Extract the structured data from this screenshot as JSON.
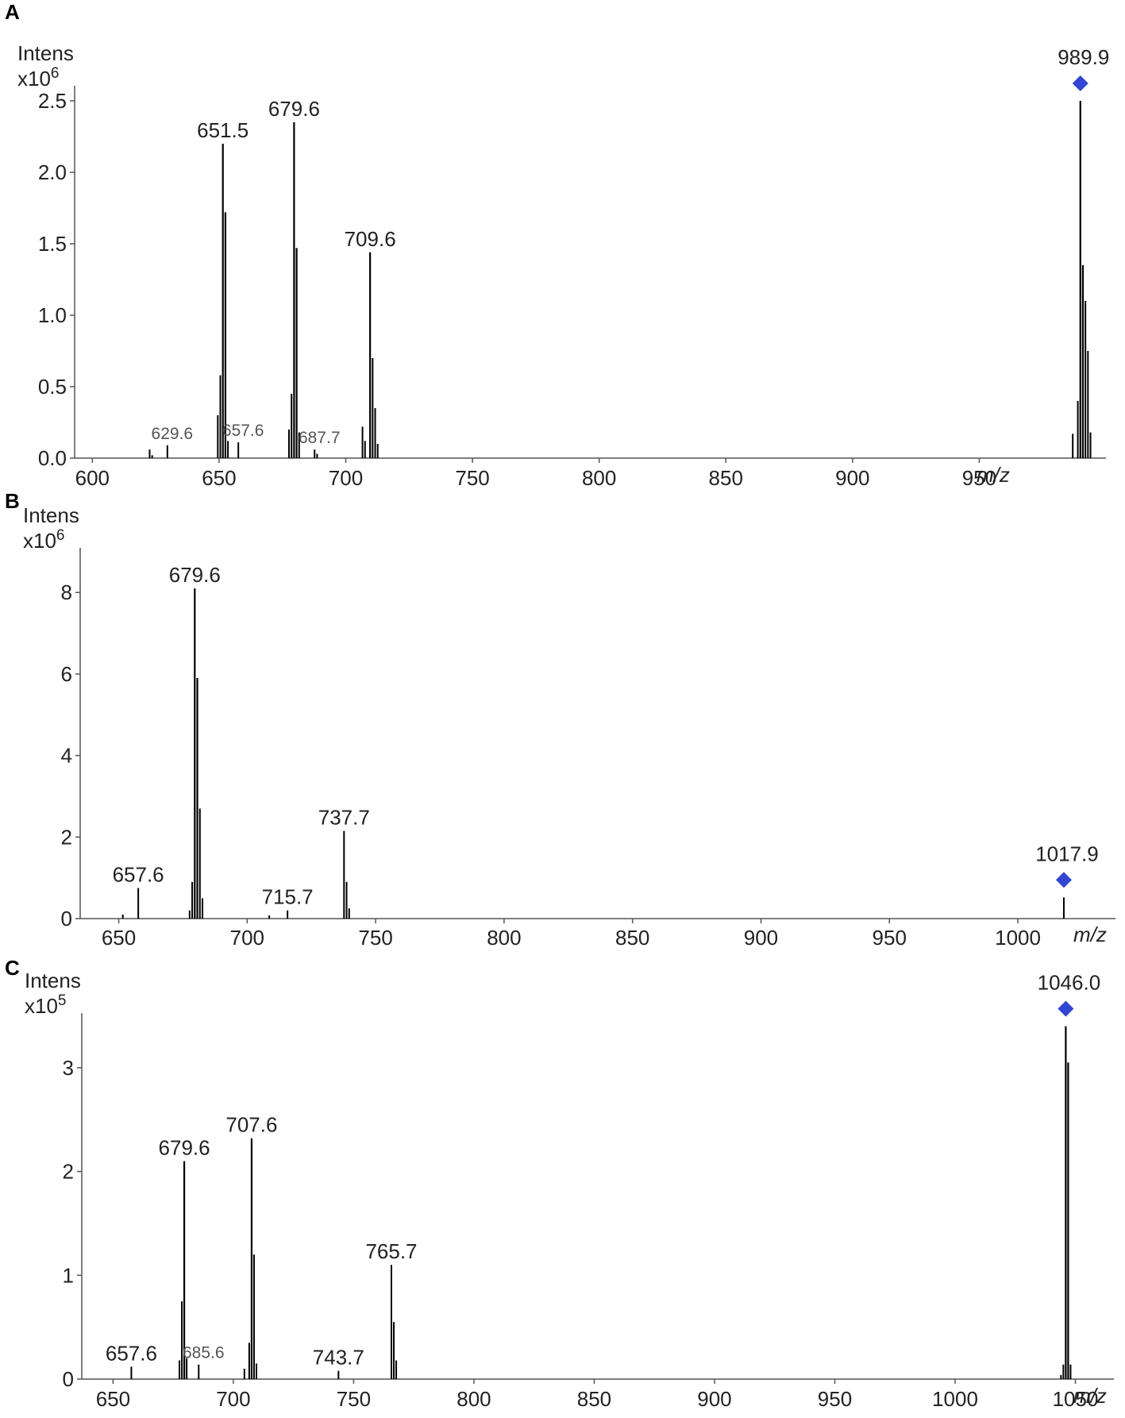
{
  "colors": {
    "spectrum": "#000000",
    "precursor_marker": "#2f46d6",
    "axis": "#555555"
  },
  "chart_data": [
    {
      "type": "bar",
      "panel": "A",
      "ylabel": "Intens",
      "yexp_base": "x10",
      "yexp": "6",
      "xunit": "m/z",
      "xlim": [
        593,
        1000
      ],
      "ylim": [
        0,
        2.55
      ],
      "xticks": [
        600,
        650,
        700,
        750,
        800,
        850,
        900,
        950
      ],
      "yticks": [
        "0.0",
        "0.5",
        "1.0",
        "1.5",
        "2.0",
        "2.5"
      ],
      "peaks": [
        {
          "mz": 622.6,
          "value": 0.06
        },
        {
          "mz": 623.6,
          "value": 0.02
        },
        {
          "mz": 629.6,
          "value": 0.09,
          "label": "629.6",
          "small": true
        },
        {
          "mz": 649.5,
          "value": 0.3
        },
        {
          "mz": 650.5,
          "value": 0.58
        },
        {
          "mz": 651.5,
          "value": 2.2,
          "label": "651.5"
        },
        {
          "mz": 652.5,
          "value": 1.72
        },
        {
          "mz": 653.5,
          "value": 0.12
        },
        {
          "mz": 657.6,
          "value": 0.11,
          "label": "657.6",
          "small": true
        },
        {
          "mz": 677.6,
          "value": 0.2
        },
        {
          "mz": 678.6,
          "value": 0.45
        },
        {
          "mz": 679.6,
          "value": 2.35,
          "label": "679.6"
        },
        {
          "mz": 680.6,
          "value": 1.47
        },
        {
          "mz": 681.6,
          "value": 0.18
        },
        {
          "mz": 687.7,
          "value": 0.06,
          "label": "687.7",
          "small": true
        },
        {
          "mz": 688.7,
          "value": 0.03
        },
        {
          "mz": 706.6,
          "value": 0.22
        },
        {
          "mz": 707.6,
          "value": 0.12
        },
        {
          "mz": 709.6,
          "value": 1.44,
          "label": "709.6"
        },
        {
          "mz": 710.6,
          "value": 0.7
        },
        {
          "mz": 711.6,
          "value": 0.35
        },
        {
          "mz": 712.6,
          "value": 0.1
        },
        {
          "mz": 986.9,
          "value": 0.17
        },
        {
          "mz": 988.9,
          "value": 0.4
        },
        {
          "mz": 989.9,
          "value": 2.5,
          "label": "989.9",
          "precursor": true
        },
        {
          "mz": 990.9,
          "value": 1.35
        },
        {
          "mz": 991.9,
          "value": 1.1
        },
        {
          "mz": 992.9,
          "value": 0.75
        },
        {
          "mz": 993.9,
          "value": 0.18
        }
      ]
    },
    {
      "type": "bar",
      "panel": "B",
      "ylabel": "Intens",
      "yexp_base": "x10",
      "yexp": "6",
      "xunit": "m/z",
      "xlim": [
        635,
        1038
      ],
      "ylim": [
        0,
        8.9
      ],
      "xticks": [
        650,
        700,
        750,
        800,
        850,
        900,
        950,
        1000
      ],
      "yticks": [
        "0",
        "2",
        "4",
        "6",
        "8"
      ],
      "peaks": [
        {
          "mz": 651.6,
          "value": 0.1
        },
        {
          "mz": 657.6,
          "value": 0.75,
          "label": "657.6"
        },
        {
          "mz": 677.6,
          "value": 0.2
        },
        {
          "mz": 678.6,
          "value": 0.9
        },
        {
          "mz": 679.6,
          "value": 8.1,
          "label": "679.6"
        },
        {
          "mz": 680.6,
          "value": 5.9
        },
        {
          "mz": 681.6,
          "value": 2.7
        },
        {
          "mz": 682.6,
          "value": 0.5
        },
        {
          "mz": 708.6,
          "value": 0.08
        },
        {
          "mz": 715.7,
          "value": 0.2,
          "label": "715.7"
        },
        {
          "mz": 737.7,
          "value": 2.15,
          "label": "737.7"
        },
        {
          "mz": 738.7,
          "value": 0.9
        },
        {
          "mz": 739.7,
          "value": 0.25
        },
        {
          "mz": 1017.9,
          "value": 0.52,
          "label": "1017.9",
          "precursor": true
        }
      ]
    },
    {
      "type": "bar",
      "panel": "C",
      "ylabel": "Intens",
      "yexp_base": "x10",
      "yexp": "5",
      "xunit": "m/z",
      "xlim": [
        637,
        1066
      ],
      "ylim": [
        0,
        3.45
      ],
      "xticks": [
        650,
        700,
        750,
        800,
        850,
        900,
        950,
        1000,
        1050
      ],
      "yticks": [
        "0",
        "1",
        "2",
        "3"
      ],
      "peaks": [
        {
          "mz": 657.6,
          "value": 0.12,
          "label": "657.6"
        },
        {
          "mz": 677.6,
          "value": 0.18
        },
        {
          "mz": 678.6,
          "value": 0.75
        },
        {
          "mz": 679.6,
          "value": 2.1,
          "label": "679.6"
        },
        {
          "mz": 680.6,
          "value": 0.2
        },
        {
          "mz": 685.6,
          "value": 0.14,
          "label": "685.6",
          "small": true
        },
        {
          "mz": 704.6,
          "value": 0.1
        },
        {
          "mz": 706.6,
          "value": 0.35
        },
        {
          "mz": 707.6,
          "value": 2.32,
          "label": "707.6"
        },
        {
          "mz": 708.6,
          "value": 1.2
        },
        {
          "mz": 709.6,
          "value": 0.15
        },
        {
          "mz": 743.7,
          "value": 0.08,
          "label": "743.7"
        },
        {
          "mz": 765.7,
          "value": 1.1,
          "label": "765.7"
        },
        {
          "mz": 766.7,
          "value": 0.55
        },
        {
          "mz": 767.7,
          "value": 0.18
        },
        {
          "mz": 1044.0,
          "value": 0.04
        },
        {
          "mz": 1045.0,
          "value": 0.14
        },
        {
          "mz": 1046.0,
          "value": 3.4,
          "label": "1046.0",
          "precursor": true
        },
        {
          "mz": 1047.0,
          "value": 3.05
        },
        {
          "mz": 1048.0,
          "value": 0.14
        }
      ]
    }
  ]
}
